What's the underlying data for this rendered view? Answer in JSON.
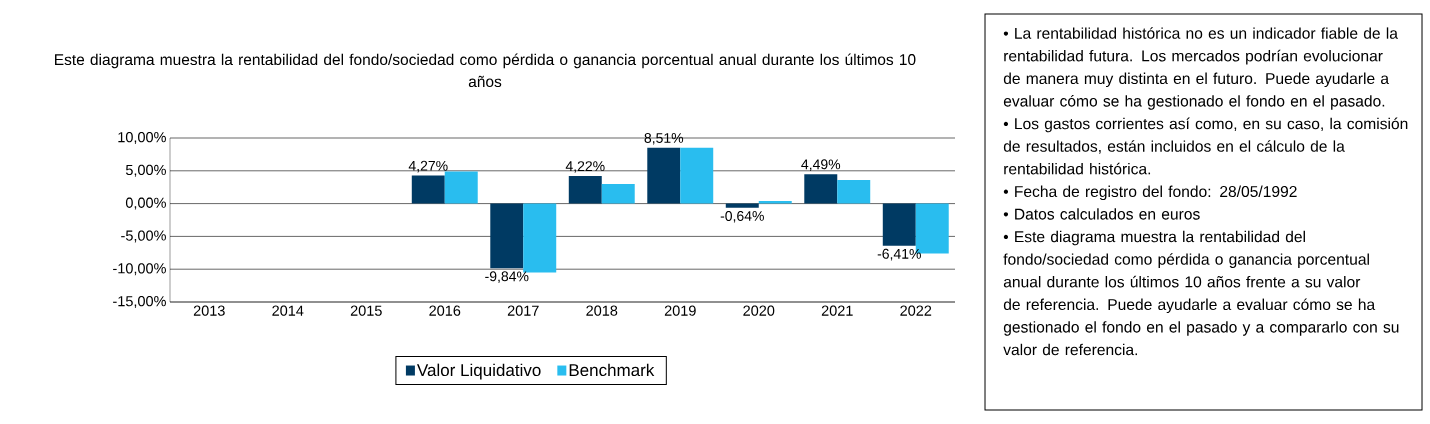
{
  "chart_data": {
    "type": "bar",
    "title": "Este diagrama  muestra la rentabilidad  del fondo/sociedad como pérdida  o ganancia porcentual anual durante los últimos  10  años",
    "categories": [
      "2013",
      "2014",
      "2015",
      "2016",
      "2017",
      "2018",
      "2019",
      "2020",
      "2021",
      "2022"
    ],
    "series": [
      {
        "name": "Valor Liquidativo",
        "color": "#003a63",
        "values": [
          null,
          null,
          null,
          4.27,
          -9.84,
          4.22,
          8.51,
          -0.64,
          4.49,
          -6.41
        ],
        "value_labels": [
          null,
          null,
          null,
          "4,27%",
          "-9,84%",
          "4,22%",
          "8,51%",
          "-0,64%",
          "4,49%",
          "-6,41%"
        ]
      },
      {
        "name": "Benchmark",
        "color": "#29bdef",
        "values": [
          null,
          null,
          null,
          4.9,
          -10.5,
          3.0,
          8.5,
          0.4,
          3.6,
          -7.6
        ]
      }
    ],
    "ylim": [
      -15,
      10
    ],
    "yticks": [
      {
        "value": -15,
        "label": "-15,00%"
      },
      {
        "value": -10,
        "label": "-10,00%"
      },
      {
        "value": -5,
        "label": "-5,00%"
      },
      {
        "value": 0,
        "label": "0,00%"
      },
      {
        "value": 5,
        "label": "5,00%"
      },
      {
        "value": 10,
        "label": "10,00%"
      }
    ],
    "grid": "y",
    "legend": "bottom",
    "annotations": [
      "• La rentabilidad histórica no es un indicador fiable de la rentabilidad futura. Los mercados podrían evolucionar de manera muy distinta en el futuro. Puede ayudarle a evaluar cómo se ha gestionado el fondo en el pasado.",
      "• Los gastos corrientes así como, en su caso, la comisión de resultados, están incluidos en el cálculo de la rentabilidad histórica.",
      "• Fecha de registro del fondo: 28/05/1992",
      "• Datos calculados en euros",
      "• Este diagrama muestra la rentabilidad del fondo/sociedad como pérdida o ganancia porcentual anual durante los últimos 10 años frente a su valor de referencia. Puede ayudarle a evaluar cómo se ha gestionado el fondo en el pasado y a compararlo con su valor de referencia."
    ]
  }
}
